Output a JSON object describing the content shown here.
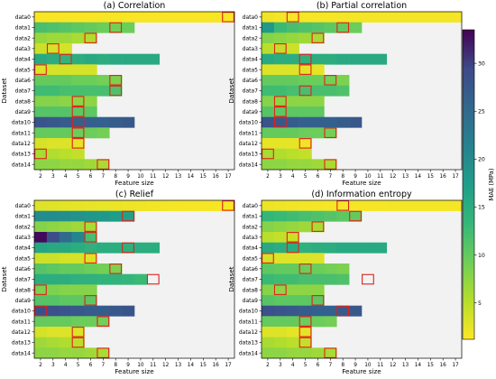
{
  "chart_data": {
    "type": "heatmap",
    "colorbar": {
      "label": "MAE (MPa)",
      "vmin": 1.2,
      "vmax": 33.5,
      "ticks": [
        5,
        10,
        15,
        20,
        25,
        30
      ],
      "colormap": "viridis_r"
    },
    "panels": [
      {
        "title": "(a) Correlation",
        "xlabel": "Feature size",
        "ylabel": "Dataset",
        "x_ticks": [
          2,
          3,
          4,
          5,
          6,
          7,
          8,
          9,
          10,
          11,
          12,
          13,
          14,
          15,
          16,
          17
        ],
        "y_ticks": [
          "data0",
          "data1",
          "data2",
          "data3",
          "data4",
          "data5",
          "data6",
          "data7",
          "data8",
          "data9",
          "data10",
          "data11",
          "data12",
          "data13",
          "data14"
        ],
        "rows": [
          [
            1.5,
            1.5,
            1.5,
            1.5,
            1.5,
            1.5,
            1.5,
            1.5,
            1.5,
            1.5,
            1.5,
            1.5,
            1.5,
            1.5,
            1.5,
            1.4
          ],
          [
            12.0,
            11.5,
            11.0,
            10.5,
            10.0,
            9.5,
            9.0,
            9.5
          ],
          [
            7.0,
            6.5,
            6.5,
            6.0,
            5.5
          ],
          [
            4.0,
            3.5,
            3.5
          ],
          [
            15.5,
            15.0,
            14.0,
            15.0,
            15.5,
            15.0,
            15.5,
            15.5,
            15.5,
            15.5
          ],
          [
            3.0,
            3.5,
            3.5,
            3.5,
            3.5
          ],
          [
            10.0,
            10.0,
            10.0,
            9.5,
            9.5,
            9.0,
            8.5
          ],
          [
            12.5,
            12.5,
            12.0,
            12.0,
            12.0,
            12.0,
            11.5
          ],
          [
            8.0,
            8.0,
            7.5,
            7.5,
            7.5
          ],
          [
            11.0,
            11.0,
            11.0,
            10.5,
            10.5
          ],
          [
            28.0,
            27.5,
            27.0,
            26.5,
            26.5,
            26.5,
            27.0,
            27.5
          ],
          [
            10.0,
            10.0,
            10.0,
            9.5,
            9.5,
            9.0
          ],
          [
            3.5,
            3.0,
            3.0,
            2.5
          ],
          [
            6.0,
            5.5,
            5.0,
            4.5
          ],
          [
            7.5,
            7.5,
            7.0,
            7.0,
            6.5,
            6.0
          ]
        ],
        "highlights": [
          [
            0,
            17
          ],
          [
            1,
            8
          ],
          [
            2,
            6
          ],
          [
            3,
            3
          ],
          [
            4,
            4
          ],
          [
            5,
            2
          ],
          [
            6,
            8
          ],
          [
            7,
            8
          ],
          [
            8,
            5
          ],
          [
            9,
            5
          ],
          [
            10,
            5
          ],
          [
            11,
            5
          ],
          [
            12,
            5
          ],
          [
            13,
            2
          ],
          [
            14,
            7
          ]
        ]
      },
      {
        "title": "(b) Partial correlation",
        "xlabel": "Feature size",
        "ylabel": "Dataset",
        "x_ticks": [
          2,
          3,
          4,
          5,
          6,
          7,
          8,
          9,
          10,
          11,
          12,
          13,
          14,
          15,
          16,
          17
        ],
        "y_ticks": [
          "data0",
          "data1",
          "data2",
          "data3",
          "data4",
          "data5",
          "data6",
          "data7",
          "data8",
          "data9",
          "data10",
          "data11",
          "data12",
          "data13",
          "data14"
        ],
        "rows": [
          [
            2.0,
            1.8,
            1.6,
            1.5,
            1.6,
            1.6,
            1.7,
            1.7,
            1.7,
            1.7,
            1.7,
            1.7,
            1.7,
            1.7,
            1.7,
            1.7
          ],
          [
            18.0,
            13.0,
            12.0,
            11.5,
            11.0,
            10.5,
            10.0,
            9.5
          ],
          [
            8.0,
            7.5,
            7.0,
            6.5,
            6.0
          ],
          [
            5.0,
            4.5,
            4.0
          ],
          [
            15.5,
            15.0,
            15.0,
            14.5,
            15.0,
            15.0,
            15.5,
            15.5,
            15.5,
            15.5
          ],
          [
            3.0,
            3.0,
            3.0,
            2.5,
            2.5
          ],
          [
            10.0,
            10.0,
            10.0,
            9.5,
            9.5,
            9.0,
            8.5
          ],
          [
            12.5,
            12.5,
            12.0,
            12.0,
            12.0,
            12.0,
            11.5
          ],
          [
            8.0,
            7.5,
            7.5,
            7.5,
            7.5
          ],
          [
            11.0,
            10.5,
            10.5,
            10.5,
            10.5
          ],
          [
            28.0,
            27.5,
            27.0,
            26.5,
            26.5,
            26.5,
            27.0,
            27.5
          ],
          [
            10.0,
            10.0,
            10.0,
            9.5,
            9.5,
            9.0
          ],
          [
            2.5,
            2.5,
            2.5,
            2.0
          ],
          [
            6.0,
            5.5,
            5.0,
            4.5
          ],
          [
            7.5,
            7.5,
            7.0,
            7.0,
            6.5,
            6.0
          ]
        ],
        "highlights": [
          [
            0,
            4
          ],
          [
            1,
            8
          ],
          [
            2,
            6
          ],
          [
            3,
            3
          ],
          [
            4,
            5
          ],
          [
            5,
            5
          ],
          [
            6,
            7
          ],
          [
            7,
            5
          ],
          [
            8,
            3
          ],
          [
            9,
            3
          ],
          [
            10,
            3
          ],
          [
            11,
            7
          ],
          [
            12,
            5
          ],
          [
            13,
            2
          ],
          [
            14,
            7
          ]
        ]
      },
      {
        "title": "(c) Relief",
        "xlabel": "Feature size",
        "ylabel": "Dataset",
        "x_ticks": [
          2,
          3,
          4,
          5,
          6,
          7,
          8,
          9,
          10,
          11,
          12,
          13,
          14,
          15,
          16,
          17
        ],
        "y_ticks": [
          "data0",
          "data1",
          "data2",
          "data3",
          "data4",
          "data5",
          "data6",
          "data7",
          "data8",
          "data9",
          "data10",
          "data11",
          "data12",
          "data13",
          "data14"
        ],
        "rows": [
          [
            3.0,
            2.8,
            2.6,
            2.5,
            2.4,
            2.3,
            2.2,
            2.1,
            2.0,
            1.9,
            1.8,
            1.7,
            1.6,
            1.6,
            1.5,
            1.4
          ],
          [
            20.0,
            20.0,
            19.5,
            19.0,
            18.5,
            18.0,
            17.5,
            17.0
          ],
          [
            8.0,
            7.5,
            7.0,
            6.5,
            6.0
          ],
          [
            33.0,
            29.0,
            25.0,
            21.0,
            12.0
          ],
          [
            16.0,
            15.5,
            15.5,
            15.0,
            14.5,
            15.0,
            15.0,
            14.5,
            15.0,
            15.0
          ],
          [
            4.0,
            4.0,
            3.5,
            3.5,
            3.0
          ],
          [
            11.0,
            10.5,
            10.0,
            10.0,
            9.5,
            9.0,
            8.5
          ],
          [
            15.0,
            15.0,
            15.0,
            14.5,
            14.5,
            14.0,
            14.0,
            13.5,
            13.0
          ],
          [
            8.5,
            8.5,
            8.0,
            8.0,
            8.0
          ],
          [
            11.0,
            11.0,
            10.5,
            10.5,
            10.5
          ],
          [
            29.0,
            28.5,
            28.0,
            27.5,
            27.0,
            27.0,
            27.5,
            28.0
          ],
          [
            10.0,
            10.0,
            10.0,
            9.5,
            9.5,
            9.0
          ],
          [
            3.5,
            3.0,
            3.0,
            3.0
          ],
          [
            6.5,
            6.0,
            5.5,
            5.0
          ],
          [
            7.5,
            7.5,
            7.0,
            7.0,
            6.5,
            6.0
          ]
        ],
        "highlights": [
          [
            0,
            17
          ],
          [
            1,
            9
          ],
          [
            2,
            6
          ],
          [
            3,
            6
          ],
          [
            4,
            9
          ],
          [
            5,
            6
          ],
          [
            6,
            8
          ],
          [
            7,
            11
          ],
          [
            8,
            2
          ],
          [
            9,
            6
          ],
          [
            10,
            2
          ],
          [
            11,
            7
          ],
          [
            12,
            5
          ],
          [
            13,
            5
          ],
          [
            14,
            7
          ]
        ]
      },
      {
        "title": "(d) Information entropy",
        "xlabel": "Feature size",
        "ylabel": "Dataset",
        "x_ticks": [
          2,
          3,
          4,
          5,
          6,
          7,
          8,
          9,
          10,
          11,
          12,
          13,
          14,
          15,
          16,
          17
        ],
        "y_ticks": [
          "data0",
          "data1",
          "data2",
          "data3",
          "data4",
          "data5",
          "data6",
          "data7",
          "data8",
          "data9",
          "data10",
          "data11",
          "data12",
          "data13",
          "data14"
        ],
        "rows": [
          [
            2.2,
            2.0,
            1.9,
            1.8,
            1.7,
            1.6,
            1.5,
            1.5,
            1.6,
            1.6,
            1.7,
            1.7,
            1.7,
            1.7,
            1.7,
            1.7
          ],
          [
            13.5,
            13.0,
            12.5,
            12.0,
            11.5,
            11.0,
            10.5,
            10.0
          ],
          [
            8.0,
            7.5,
            7.0,
            6.5,
            6.0
          ],
          [
            5.0,
            4.5,
            4.0
          ],
          [
            15.5,
            15.0,
            15.0,
            14.5,
            15.0,
            15.0,
            15.5,
            15.5,
            15.5,
            15.5
          ],
          [
            3.5,
            3.0,
            3.0,
            3.0,
            3.0
          ],
          [
            10.5,
            10.0,
            10.0,
            9.5,
            9.5,
            9.0,
            8.5
          ],
          [
            13.0,
            12.5,
            12.5,
            12.0,
            12.0,
            12.0,
            11.5
          ],
          [
            8.0,
            7.5,
            7.5,
            7.5,
            7.5
          ],
          [
            11.0,
            10.5,
            10.5,
            10.5,
            10.5
          ],
          [
            28.5,
            28.0,
            27.5,
            27.0,
            26.5,
            26.5,
            27.0,
            27.5
          ],
          [
            10.0,
            10.0,
            10.0,
            9.5,
            9.5,
            9.0
          ],
          [
            3.0,
            3.0,
            2.5,
            2.5
          ],
          [
            6.0,
            5.5,
            5.0,
            4.5
          ],
          [
            7.5,
            7.5,
            7.0,
            7.0,
            6.5,
            6.0
          ]
        ],
        "highlights": [
          [
            0,
            8
          ],
          [
            1,
            9
          ],
          [
            2,
            6
          ],
          [
            3,
            4
          ],
          [
            4,
            4
          ],
          [
            5,
            2
          ],
          [
            6,
            5
          ],
          [
            7,
            10
          ],
          [
            8,
            3
          ],
          [
            9,
            6
          ],
          [
            10,
            8
          ],
          [
            11,
            5
          ],
          [
            12,
            5
          ],
          [
            13,
            5
          ],
          [
            14,
            7
          ]
        ]
      }
    ]
  }
}
